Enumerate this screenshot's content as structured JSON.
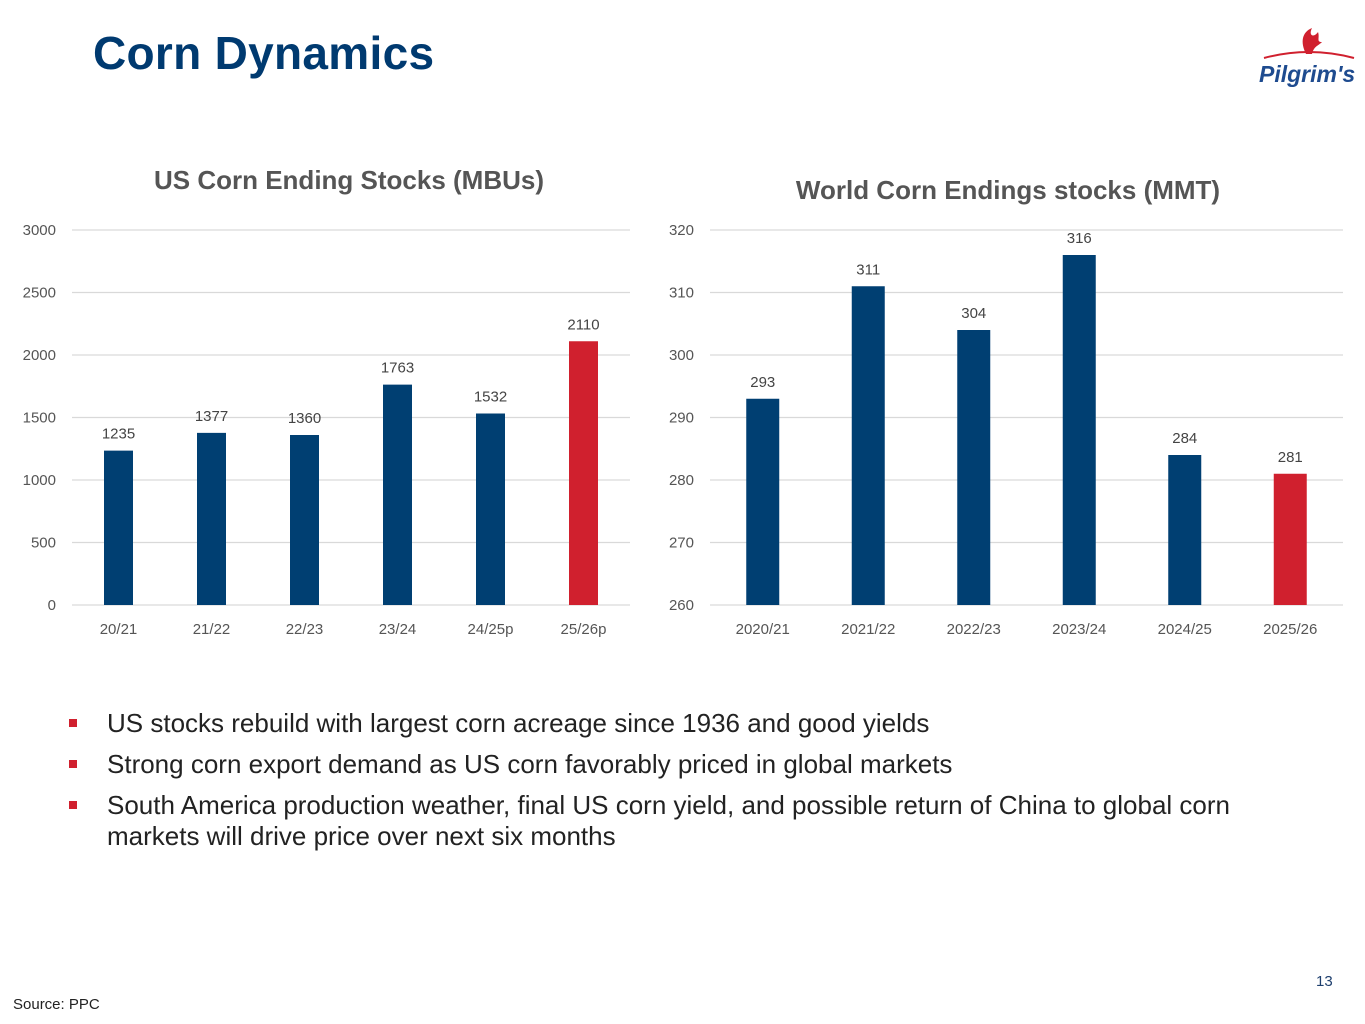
{
  "slide": {
    "title": "Corn Dynamics",
    "logo_text": "Pilgrim's",
    "page_number": "13",
    "source": "Source: PPC",
    "bullets": [
      "US stocks rebuild with largest corn acreage since 1936 and good yields",
      "Strong corn export demand as US corn favorably priced in global markets",
      "South America production weather, final US corn yield, and possible return of China to global corn markets will drive price over next six months"
    ],
    "colors": {
      "title": "#003a70",
      "bar": "#003f72",
      "highlight": "#d0202e",
      "bullet": "#d0202e"
    }
  },
  "chart_data": [
    {
      "type": "bar",
      "title": "US Corn Ending Stocks (MBUs)",
      "categories": [
        "20/21",
        "21/22",
        "22/23",
        "23/24",
        "24/25p",
        "25/26p"
      ],
      "values": [
        1235,
        1377,
        1360,
        1763,
        1532,
        2110
      ],
      "data_labels": [
        "1235",
        "1377",
        "1360",
        "1763",
        "1532",
        "2110"
      ],
      "highlight_index": 5,
      "ylim": [
        0,
        3000
      ],
      "yticks": [
        "0",
        "500",
        "1000",
        "1500",
        "2000",
        "2500",
        "3000"
      ],
      "grid": true,
      "legend": "none"
    },
    {
      "type": "bar",
      "title": "World Corn Endings stocks (MMT)",
      "categories": [
        "2020/21",
        "2021/22",
        "2022/23",
        "2023/24",
        "2024/25",
        "2025/26"
      ],
      "values": [
        293,
        311,
        304,
        316,
        284,
        281
      ],
      "data_labels": [
        "293",
        "311",
        "304",
        "316",
        "284",
        "281"
      ],
      "highlight_index": 5,
      "ylim": [
        260,
        320
      ],
      "yticks": [
        "260",
        "270",
        "280",
        "290",
        "300",
        "310",
        "320"
      ],
      "grid": true,
      "legend": "none"
    }
  ]
}
